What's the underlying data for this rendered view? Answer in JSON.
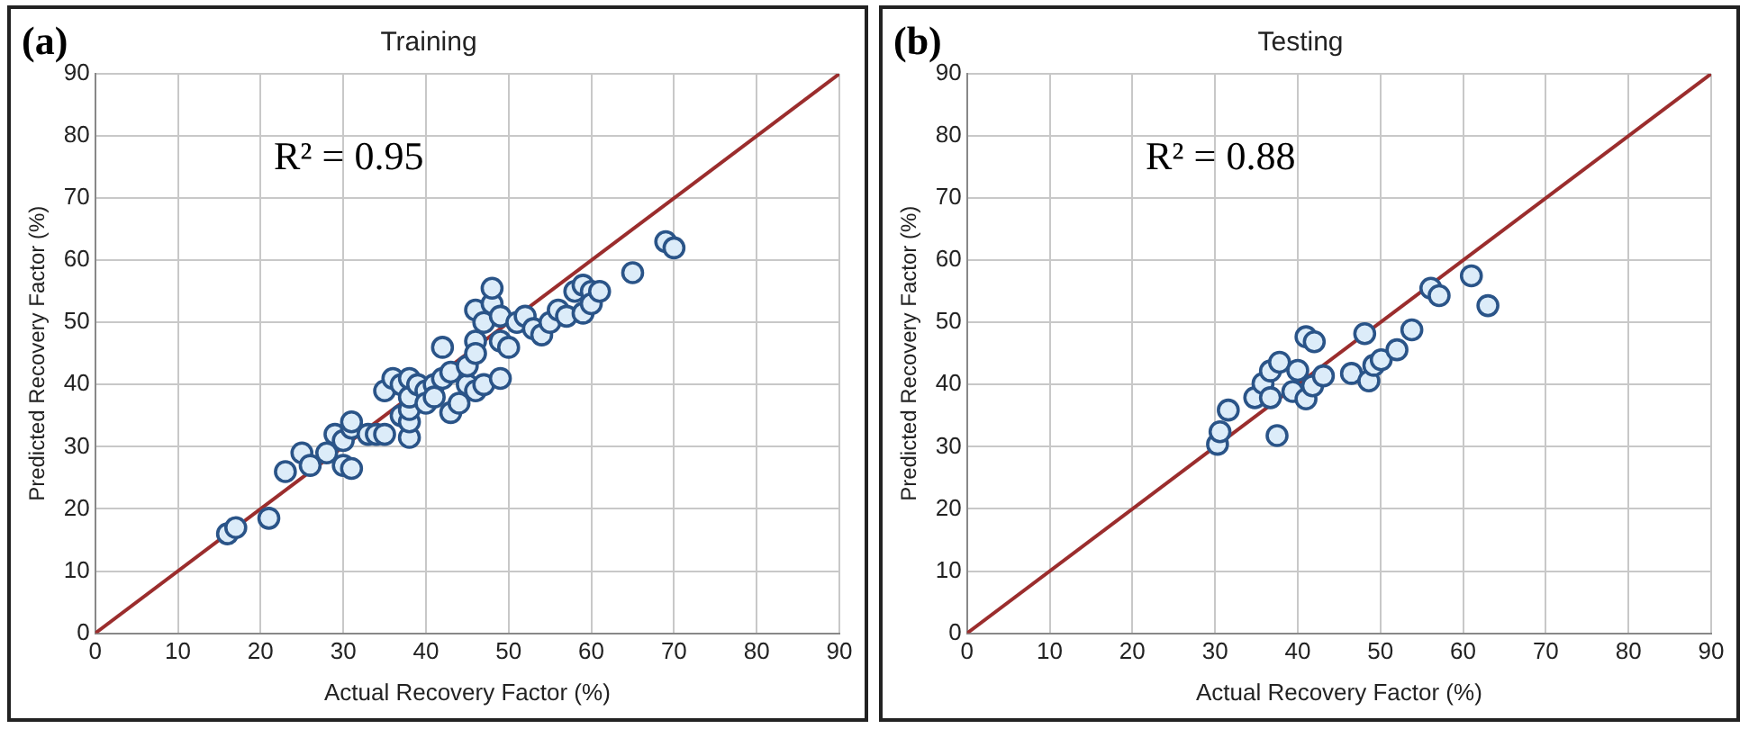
{
  "chart_data": [
    {
      "type": "scatter",
      "title": "Training",
      "xlabel": "Actual Recovery Factor (%)",
      "ylabel": "Predicted Recovery Factor (%)",
      "annotations": [
        "(a)",
        "R² = 0.95"
      ],
      "xlim": [
        0,
        90
      ],
      "ylim": [
        0,
        90
      ],
      "xticks": [
        0,
        10,
        20,
        30,
        40,
        50,
        60,
        70,
        80,
        90
      ],
      "yticks": [
        0,
        10,
        20,
        30,
        40,
        50,
        60,
        70,
        80,
        90
      ],
      "grid": true,
      "legend": false,
      "marker": "circle",
      "series": [
        {
          "color": "#2a5488",
          "x": [
            16,
            17,
            21,
            23,
            25,
            26,
            28,
            29,
            30,
            30,
            31,
            31,
            31,
            33,
            34,
            35,
            35,
            36,
            37,
            37,
            38,
            38,
            38,
            38,
            38,
            39,
            40,
            40,
            41,
            41,
            42,
            42,
            43,
            43,
            44,
            45,
            45,
            46,
            46,
            46,
            46,
            47,
            47,
            48,
            48,
            49,
            49,
            49,
            50,
            51,
            52,
            53,
            54,
            55,
            56,
            57,
            58,
            59,
            59,
            60,
            60,
            61,
            65,
            69,
            70
          ],
          "values": [
            16,
            17,
            18.5,
            26,
            29,
            27,
            29,
            32,
            31,
            27,
            26.5,
            33,
            34,
            32,
            32,
            39,
            32,
            41,
            35,
            40,
            31.5,
            34,
            36,
            38,
            41,
            40,
            39,
            37,
            40,
            38,
            41,
            46,
            35.5,
            42,
            37,
            40,
            43,
            39,
            52,
            47,
            45,
            50,
            40,
            53,
            55.5,
            47,
            41,
            51,
            46,
            50,
            51,
            49,
            48,
            50,
            52,
            51,
            55,
            56,
            51.5,
            55,
            53,
            55,
            58,
            63,
            62
          ]
        },
        {
          "type": "line",
          "color": "#9b2d2d",
          "marker": "none",
          "x": [
            0,
            90
          ],
          "values": [
            0,
            90
          ]
        }
      ]
    },
    {
      "type": "scatter",
      "title": "Testing",
      "xlabel": "Actual Recovery Factor (%)",
      "ylabel": "Predicted Recovery Factor (%)",
      "annotations": [
        "(b)",
        "R² = 0.88"
      ],
      "xlim": [
        0,
        90
      ],
      "ylim": [
        0,
        90
      ],
      "xticks": [
        0,
        10,
        20,
        30,
        40,
        50,
        60,
        70,
        80,
        90
      ],
      "yticks": [
        0,
        10,
        20,
        30,
        40,
        50,
        60,
        70,
        80,
        90
      ],
      "grid": true,
      "legend": false,
      "marker": "circle",
      "series": [
        {
          "color": "#2a5488",
          "x": [
            30.3,
            30.6,
            31.6,
            34.8,
            35.8,
            36.7,
            36.7,
            37.8,
            37.5,
            39.4,
            40,
            41,
            41.8,
            41,
            42,
            43.1,
            46.5,
            48.1,
            48.6,
            49.2,
            50.1,
            52,
            53.8,
            56.1,
            57.1,
            61,
            63
          ],
          "values": [
            30.4,
            32.4,
            35.9,
            37.9,
            40.2,
            37.9,
            42.2,
            43.6,
            31.8,
            38.9,
            42.3,
            37.7,
            39.8,
            47.7,
            46.9,
            41.4,
            41.8,
            48.2,
            40.6,
            43.1,
            44,
            45.6,
            48.8,
            55.5,
            54.3,
            57.5,
            52.7
          ]
        },
        {
          "type": "line",
          "color": "#9b2d2d",
          "marker": "none",
          "x": [
            0,
            90
          ],
          "values": [
            0,
            90
          ]
        }
      ]
    }
  ]
}
